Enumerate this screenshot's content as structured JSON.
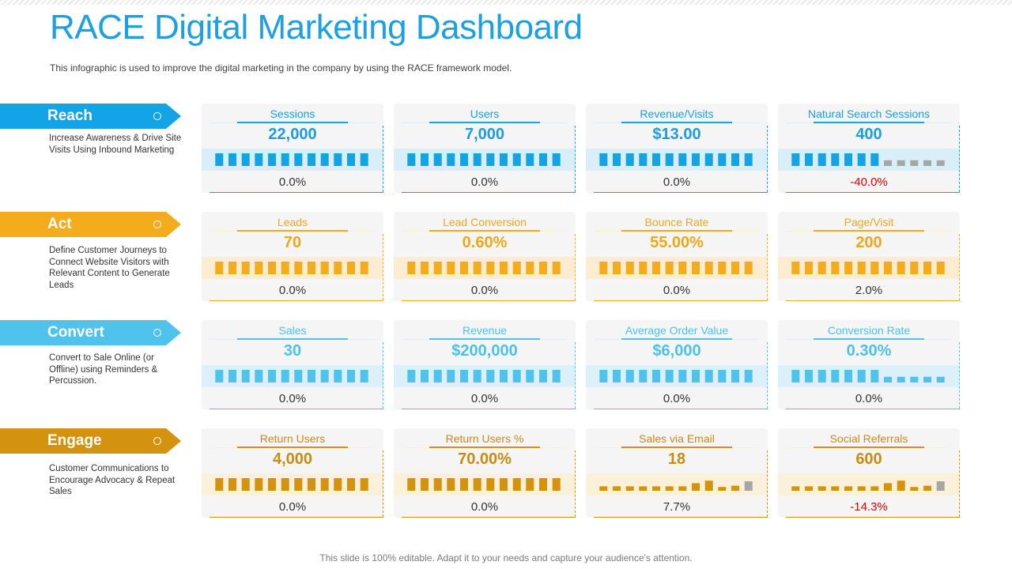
{
  "header": {
    "title": "RACE Digital Marketing Dashboard",
    "subtitle": "This infographic is used to improve  the digital marketing in the company by using the RACE framework  model."
  },
  "footer": "This slide is 100% editable. Adapt it to your needs and capture your audience's attention.",
  "rows": [
    {
      "name": "Reach",
      "description": "Increase Awareness & Drive Site Visits Using Inbound Marketing",
      "color": "#12a4e4",
      "text_color": "#1a9ee0",
      "band_color": "#d8eef9",
      "cards": [
        {
          "label": "Sessions",
          "value": "22,000",
          "change": "0.0%",
          "bars": [
            1,
            1,
            1,
            1,
            1,
            1,
            1,
            1,
            1,
            1,
            1,
            1
          ],
          "highlight": [],
          "gray": []
        },
        {
          "label": "Users",
          "value": "7,000",
          "change": "0.0%",
          "bars": [
            1,
            1,
            1,
            1,
            1,
            1,
            1,
            1,
            1,
            1,
            1,
            1
          ],
          "highlight": [],
          "gray": []
        },
        {
          "label": "Revenue/Visits",
          "value": "$13.00",
          "change": "0.0%",
          "bars": [
            1,
            1,
            1,
            1,
            1,
            1,
            1,
            1,
            1,
            1,
            1,
            1
          ],
          "highlight": [],
          "gray": []
        },
        {
          "label": "Natural Search Sessions",
          "value": "400",
          "change": "-40.0%",
          "bars": [
            1,
            1,
            1,
            1,
            1,
            1,
            1,
            0.45,
            0.45,
            0.45,
            0.45,
            0.45
          ],
          "highlight": [],
          "gray": [
            7,
            8,
            9,
            10,
            11
          ]
        }
      ]
    },
    {
      "name": "Act",
      "description": "Define Customer Journeys to Connect Website Visitors with Relevant Content to Generate Leads",
      "color": "#f4ab1c",
      "text_color": "#eda71b",
      "band_color": "#fbecd2",
      "cards": [
        {
          "label": "Leads",
          "value": "70",
          "change": "0.0%",
          "bars": [
            1,
            1,
            1,
            1,
            1,
            1,
            1,
            1,
            1,
            1,
            1,
            1
          ],
          "highlight": [],
          "gray": []
        },
        {
          "label": "Lead Conversion",
          "value": "0.60%",
          "change": "0.0%",
          "bars": [
            1,
            1,
            1,
            1,
            1,
            1,
            1,
            1,
            1,
            1,
            1,
            1
          ],
          "highlight": [],
          "gray": []
        },
        {
          "label": "Bounce Rate",
          "value": "55.00%",
          "change": "0.0%",
          "bars": [
            1,
            1,
            1,
            1,
            1,
            1,
            1,
            1,
            1,
            1,
            1,
            1
          ],
          "highlight": [],
          "gray": []
        },
        {
          "label": "Page/Visit",
          "value": "200",
          "change": "2.0%",
          "bars": [
            1,
            1,
            1,
            1,
            1,
            1,
            1,
            1,
            1,
            1,
            1,
            1
          ],
          "highlight": [],
          "gray": []
        }
      ]
    },
    {
      "name": "Convert",
      "description": "Convert to Sale Online (or Offline) using Reminders & Percussion.",
      "color": "#4fc3ec",
      "text_color": "#4cc1ea",
      "band_color": "#dbf0f8",
      "cards": [
        {
          "label": "Sales",
          "value": "30",
          "change": "0.0%",
          "bars": [
            1,
            1,
            1,
            1,
            1,
            1,
            1,
            1,
            1,
            1,
            1,
            1
          ],
          "highlight": [],
          "gray": []
        },
        {
          "label": "Revenue",
          "value": "$200,000",
          "change": "0.0%",
          "bars": [
            1,
            1,
            1,
            1,
            1,
            1,
            1,
            1,
            1,
            1,
            1,
            1
          ],
          "highlight": [],
          "gray": []
        },
        {
          "label": "Average Order Value",
          "value": "$6,000",
          "change": "0.0%",
          "bars": [
            1,
            1,
            1,
            1,
            1,
            1,
            1,
            1,
            1,
            1,
            1,
            1
          ],
          "highlight": [],
          "gray": []
        },
        {
          "label": "Conversion Rate",
          "value": "0.30%",
          "change": "0.0%",
          "bars": [
            1,
            1,
            1,
            1,
            1,
            1,
            1,
            0.45,
            0.45,
            0.45,
            0.45,
            0.45
          ],
          "highlight": [],
          "gray": []
        }
      ]
    },
    {
      "name": "Engage",
      "description": "Customer Communications to Encourage Advocacy & Repeat Sales",
      "color": "#d4930f",
      "text_color": "#c98c10",
      "band_color": "#fbf0d9",
      "cards": [
        {
          "label": "Return Users",
          "value": "4,000",
          "change": "0.0%",
          "bars": [
            1,
            1,
            1,
            1,
            1,
            1,
            1,
            1,
            1,
            1,
            1,
            1
          ],
          "highlight": [],
          "gray": []
        },
        {
          "label": "Return Users %",
          "value": "70.00%",
          "change": "0.0%",
          "bars": [
            1,
            1,
            1,
            1,
            1,
            1,
            1,
            1,
            1,
            1,
            1,
            1
          ],
          "highlight": [],
          "gray": []
        },
        {
          "label": "Sales via Email",
          "value": "18",
          "change": "7.7%",
          "bars": [
            0.35,
            0.35,
            0.35,
            0.35,
            0.35,
            0.35,
            0.35,
            0.6,
            0.8,
            0.3,
            0.4,
            0.75
          ],
          "highlight": [],
          "gray": [
            11
          ]
        },
        {
          "label": "Social Referrals",
          "value": "600",
          "change": "-14.3%",
          "bars": [
            0.35,
            0.35,
            0.35,
            0.35,
            0.35,
            0.35,
            0.35,
            0.6,
            0.8,
            0.3,
            0.4,
            0.75
          ],
          "highlight": [],
          "gray": [
            11
          ]
        }
      ]
    }
  ]
}
